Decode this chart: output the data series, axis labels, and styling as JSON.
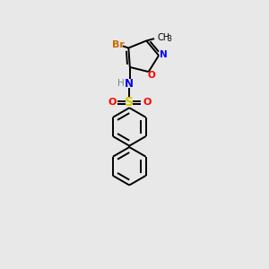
{
  "bg_color": "#e8e8e8",
  "atom_colors": {
    "C": "#000000",
    "H": "#6a8a8a",
    "N": "#0000ff",
    "O": "#ff0000",
    "S": "#cccc00",
    "Br": "#cc6600"
  },
  "line_color": "#000000",
  "line_width": 1.4
}
